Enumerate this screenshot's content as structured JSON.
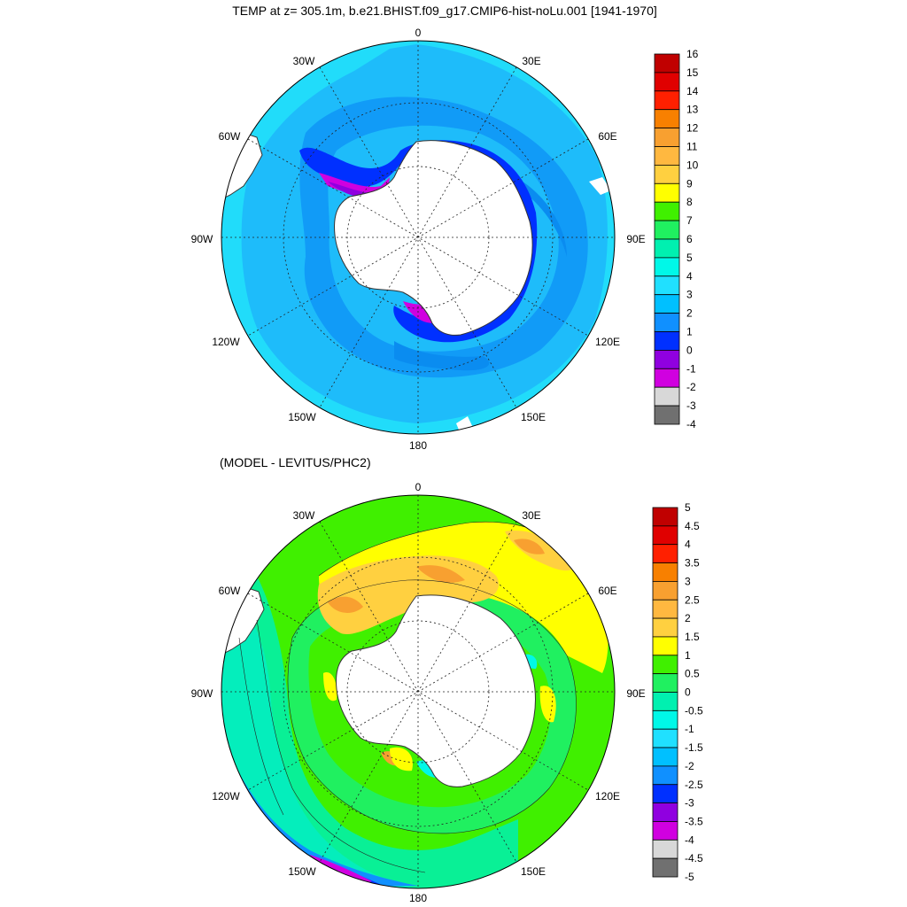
{
  "panels": [
    {
      "id": "top",
      "title": "TEMP at z= 305.1m, b.e21.BHIST.f09_g17.CMIP6-hist-noLu.001 [1941-1970]",
      "longitude_labels": [
        "0",
        "30E",
        "60E",
        "90E",
        "120E",
        "150E",
        "180",
        "150W",
        "120W",
        "90W",
        "60W",
        "30W"
      ],
      "colorbar": {
        "labels": [
          "16",
          "15",
          "14",
          "13",
          "12",
          "11",
          "10",
          "9",
          "8",
          "7",
          "6",
          "5",
          "4",
          "3",
          "2",
          "1",
          "0",
          "-1",
          "-2",
          "-3",
          "-4"
        ],
        "colors": [
          "#c00000",
          "#e00000",
          "#ff2000",
          "#f88000",
          "#f8a030",
          "#ffb840",
          "#ffd040",
          "#ffff00",
          "#40f000",
          "#20f060",
          "#00f0b0",
          "#00f8e8",
          "#20e0ff",
          "#00c0ff",
          "#1090ff",
          "#0030ff",
          "#9000e0",
          "#d000e0",
          "#d8d8d8",
          "#707070"
        ]
      }
    },
    {
      "id": "bottom",
      "title": "(MODEL - LEVITUS/PHC2)",
      "longitude_labels": [
        "0",
        "30E",
        "60E",
        "90E",
        "120E",
        "150E",
        "180",
        "150W",
        "120W",
        "90W",
        "60W",
        "30W"
      ],
      "colorbar": {
        "labels": [
          "5",
          "4.5",
          "4",
          "3.5",
          "3",
          "2.5",
          "2",
          "1.5",
          "1",
          "0.5",
          "0",
          "-0.5",
          "-1",
          "-1.5",
          "-2",
          "-2.5",
          "-3",
          "-3.5",
          "-4",
          "-4.5",
          "-5"
        ],
        "colors": [
          "#c00000",
          "#e00000",
          "#ff2000",
          "#f88000",
          "#f8a030",
          "#ffb840",
          "#ffd040",
          "#ffff00",
          "#40f000",
          "#20f060",
          "#00f0b0",
          "#00f8e8",
          "#20e0ff",
          "#00c0ff",
          "#1090ff",
          "#0030ff",
          "#9000e0",
          "#d000e0",
          "#d8d8d8",
          "#707070"
        ]
      }
    }
  ]
}
